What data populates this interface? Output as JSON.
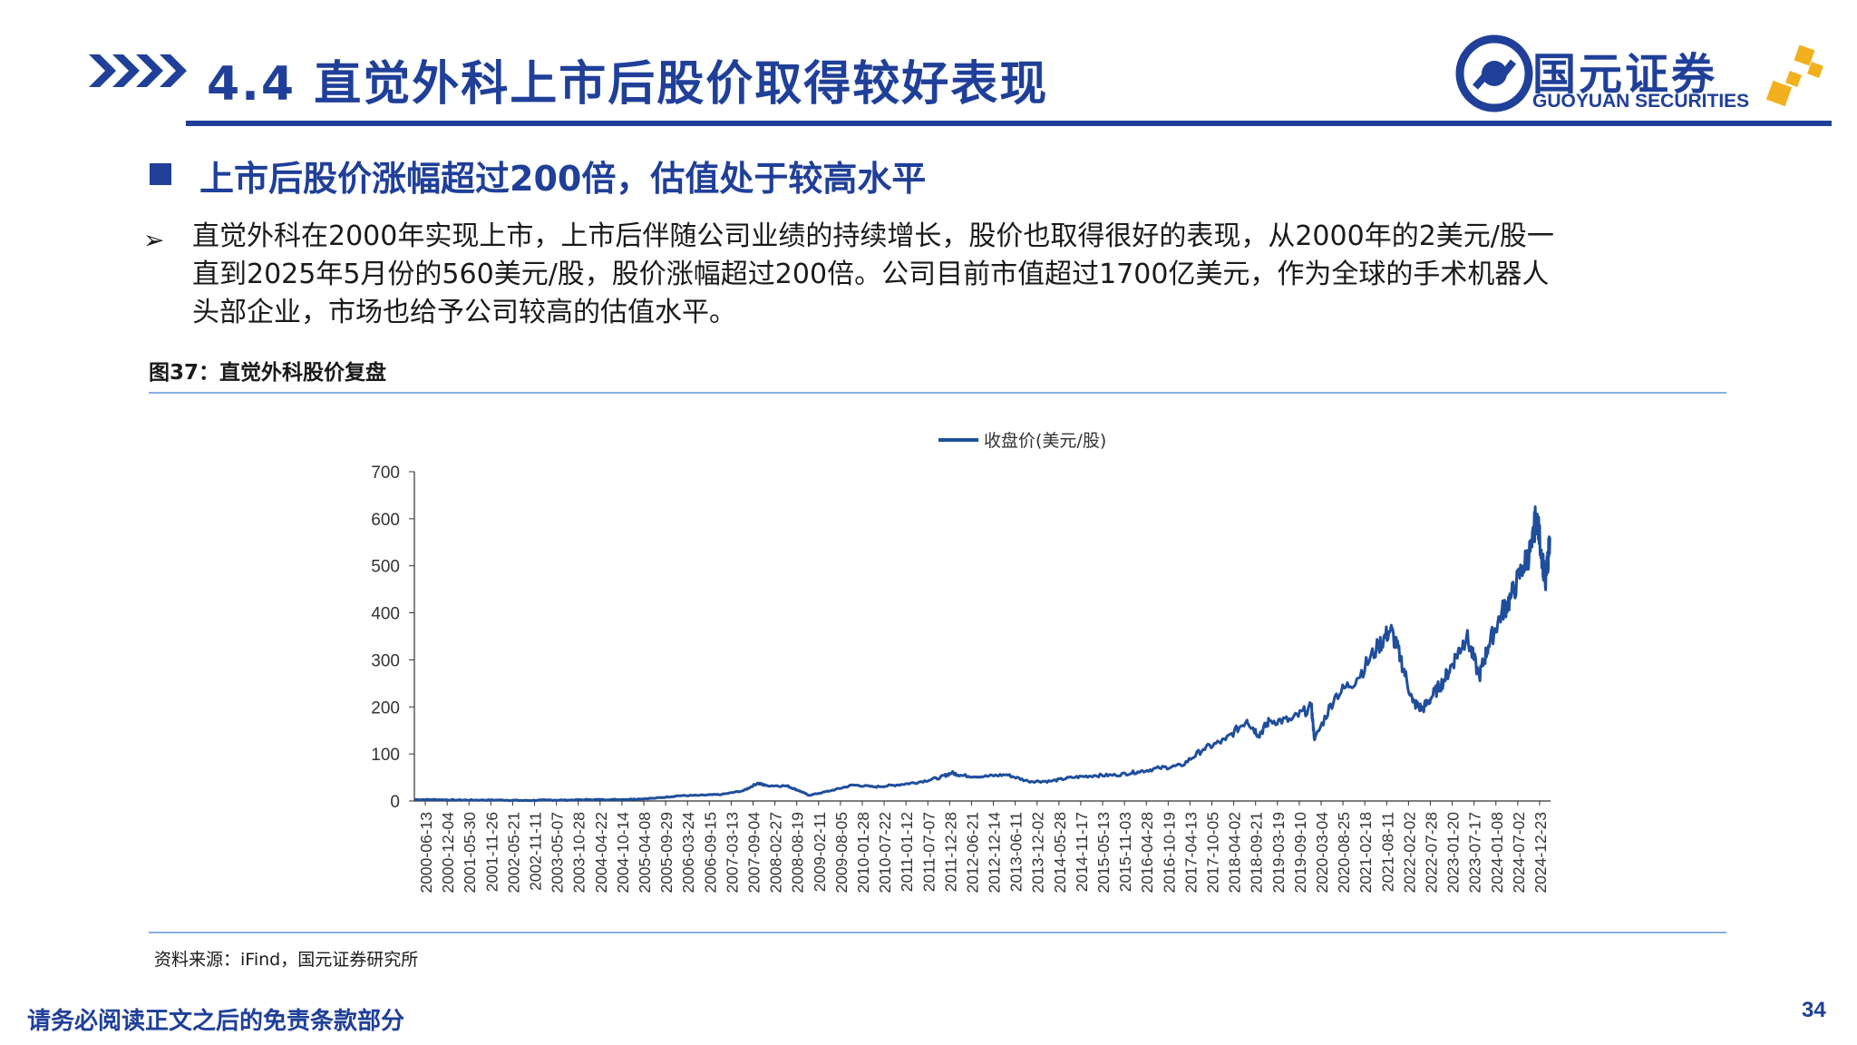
{
  "header": {
    "title": "4.4 直觉外科上市后股价取得较好表现",
    "logo": {
      "name_cn": "国元证券",
      "name_en": "GUOYUAN SECURITIES"
    }
  },
  "section": {
    "heading": "上市后股价涨幅超过200倍，估值处于较高水平",
    "bullet": "直觉外科在2000年实现上市，上市后伴随公司业绩的持续增长，股价也取得很好的表现，从2000年的2美元/股一\n直到2025年5月份的560美元/股，股价涨幅超过200倍。公司目前市值超过1700亿美元，作为全球的手术机器人\n头部企业，市场也给予公司较高的估值水平。"
  },
  "figure": {
    "caption": "图37：直觉外科股价复盘",
    "source": "资料来源：iFind，国元证券研究所"
  },
  "footer": {
    "disclaimer": "请务必阅读正文之后的免责条款部分",
    "page_number": "34"
  },
  "colors": {
    "brand_blue": "#1f3f99",
    "line_blue": "#1f4e9c",
    "rule_light_blue": "#8ab0e6",
    "logo_gold": "#f2b01e"
  },
  "chart_data": {
    "type": "line",
    "title": "",
    "xlabel": "",
    "ylabel": "",
    "ylim": [
      0,
      700
    ],
    "y_ticks": [
      0,
      100,
      200,
      300,
      400,
      500,
      600,
      700
    ],
    "x_tick_labels": [
      "2000-06-13",
      "2000-12-04",
      "2001-05-30",
      "2001-11-26",
      "2002-05-21",
      "2002-11-11",
      "2003-05-07",
      "2003-10-28",
      "2004-04-22",
      "2004-10-14",
      "2005-04-08",
      "2005-09-29",
      "2006-03-24",
      "2006-09-15",
      "2007-03-13",
      "2007-09-04",
      "2008-02-27",
      "2008-08-19",
      "2009-02-11",
      "2009-08-05",
      "2010-01-28",
      "2010-07-22",
      "2011-01-12",
      "2011-07-07",
      "2011-12-28",
      "2012-06-21",
      "2012-12-14",
      "2013-06-11",
      "2013-12-02",
      "2014-05-28",
      "2014-11-17",
      "2015-05-13",
      "2015-11-03",
      "2016-04-28",
      "2016-10-19",
      "2017-04-13",
      "2017-10-05",
      "2018-04-02",
      "2018-09-21",
      "2019-03-19",
      "2019-09-10",
      "2020-03-04",
      "2020-08-25",
      "2021-02-18",
      "2021-08-11",
      "2022-02-02",
      "2022-07-28",
      "2023-01-20",
      "2023-07-17",
      "2024-01-08",
      "2024-07-02",
      "2024-12-23"
    ],
    "legend_position": "top-center",
    "grid": false,
    "series": [
      {
        "name": "收盘价(美元/股)",
        "x": [
          "2000-06-13",
          "2000-12-04",
          "2001-05-30",
          "2001-11-26",
          "2002-05-21",
          "2002-11-11",
          "2003-05-07",
          "2003-10-28",
          "2004-04-22",
          "2004-10-14",
          "2005-04-08",
          "2005-09-29",
          "2006-03-24",
          "2006-09-15",
          "2007-03-13",
          "2007-09-04",
          "2007-12-26",
          "2008-02-27",
          "2008-08-19",
          "2008-11-20",
          "2009-02-11",
          "2009-08-05",
          "2010-01-28",
          "2010-07-22",
          "2011-01-12",
          "2011-07-07",
          "2011-12-28",
          "2012-03-30",
          "2012-06-21",
          "2012-12-14",
          "2013-06-11",
          "2013-12-02",
          "2014-05-28",
          "2014-11-17",
          "2015-05-13",
          "2015-11-03",
          "2016-04-28",
          "2016-10-19",
          "2017-04-13",
          "2017-10-05",
          "2018-04-02",
          "2018-09-21",
          "2018-12-24",
          "2019-03-19",
          "2019-09-10",
          "2020-02-19",
          "2020-03-16",
          "2020-08-25",
          "2021-02-18",
          "2021-08-11",
          "2021-11-15",
          "2022-02-02",
          "2022-05-12",
          "2022-07-28",
          "2022-10-13",
          "2023-01-20",
          "2023-04-28",
          "2023-07-17",
          "2023-10-27",
          "2024-01-08",
          "2024-04-22",
          "2024-07-02",
          "2024-10-15",
          "2024-12-23",
          "2025-01-24",
          "2025-03-15",
          "2025-04-08",
          "2025-05-15"
        ],
        "values": [
          3,
          3,
          2,
          2,
          2,
          1,
          2,
          2,
          3,
          3,
          4,
          6,
          11,
          12,
          14,
          22,
          38,
          33,
          32,
          22,
          12,
          22,
          34,
          30,
          34,
          40,
          50,
          60,
          54,
          52,
          56,
          42,
          42,
          50,
          54,
          55,
          62,
          70,
          75,
          110,
          130,
          172,
          140,
          170,
          172,
          200,
          130,
          222,
          260,
          330,
          365,
          305,
          210,
          195,
          222,
          258,
          310,
          350,
          265,
          330,
          400,
          430,
          500,
          540,
          610,
          520,
          455,
          560
        ]
      }
    ]
  }
}
